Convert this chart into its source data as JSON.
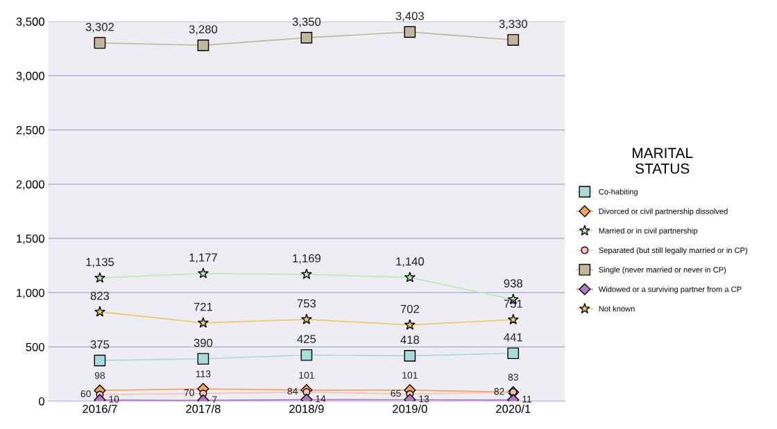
{
  "chart_data": {
    "type": "line",
    "legend_title": "MARITAL\nSTATUS",
    "categories": [
      "2016/7",
      "2017/8",
      "2018/9",
      "2019/0",
      "2020/1"
    ],
    "ylim": [
      0,
      3500
    ],
    "yticks": [
      0,
      {
        "value": 500,
        "label": "500"
      },
      {
        "value": 1000,
        "label": "1,000"
      },
      {
        "value": 1500,
        "label": "1,500"
      },
      {
        "value": 2000,
        "label": "2,000"
      },
      {
        "value": 2500,
        "label": "2,500"
      },
      {
        "value": 3000,
        "label": "3,000"
      },
      {
        "value": 3500,
        "label": "3,500"
      }
    ],
    "grid": "y",
    "legend": "right",
    "series": [
      {
        "name": "Co-habiting",
        "color": "#a8dcdc",
        "marker": "square",
        "values": [
          375,
          390,
          425,
          418,
          441
        ],
        "value_labels": [
          "375",
          "390",
          "425",
          "418",
          "441"
        ]
      },
      {
        "name": "Divorced or civil partnership dissolved",
        "color": "#f4a460",
        "marker": "diamond",
        "values": [
          98,
          113,
          101,
          101,
          82
        ],
        "value_labels": [
          "98",
          "113",
          "101",
          "101",
          "82"
        ]
      },
      {
        "name": "Married or in civil partnership",
        "color": "#b8ecb8",
        "marker": "star",
        "values": [
          1135,
          1177,
          1169,
          1140,
          938
        ],
        "value_labels": [
          "1,135",
          "1,177",
          "1,169",
          "1,140",
          "938"
        ]
      },
      {
        "name": "Separated (but still legally married or in CP)",
        "color": "#f8c0b8",
        "marker": "circle",
        "values": [
          60,
          70,
          84,
          65,
          83
        ],
        "value_labels": [
          "60",
          "70",
          "84",
          "65",
          "83"
        ]
      },
      {
        "name": "Single (never married or never in CP)",
        "color": "#c4b89c",
        "marker": "square",
        "values": [
          3302,
          3280,
          3350,
          3403,
          3330
        ],
        "value_labels": [
          "3,302",
          "3,280",
          "3,350",
          "3,403",
          "3,330"
        ]
      },
      {
        "name": "Widowed or a surviving partner from a CP",
        "color": "#b478c4",
        "marker": "diamond",
        "values": [
          10,
          7,
          14,
          13,
          11
        ],
        "value_labels": [
          "10",
          "7",
          "14",
          "13",
          "11"
        ]
      },
      {
        "name": "Not known",
        "color": "#f0c868",
        "marker": "star",
        "values": [
          823,
          721,
          753,
          702,
          751
        ],
        "value_labels": [
          "823",
          "721",
          "753",
          "702",
          "751"
        ]
      }
    ]
  }
}
